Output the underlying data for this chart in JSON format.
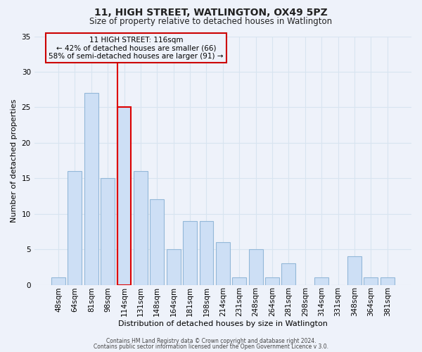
{
  "title": "11, HIGH STREET, WATLINGTON, OX49 5PZ",
  "subtitle": "Size of property relative to detached houses in Watlington",
  "xlabel": "Distribution of detached houses by size in Watlington",
  "ylabel": "Number of detached properties",
  "footer_line1": "Contains HM Land Registry data © Crown copyright and database right 2024.",
  "footer_line2": "Contains public sector information licensed under the Open Government Licence v 3.0.",
  "bar_labels": [
    "48sqm",
    "64sqm",
    "81sqm",
    "98sqm",
    "114sqm",
    "131sqm",
    "148sqm",
    "164sqm",
    "181sqm",
    "198sqm",
    "214sqm",
    "231sqm",
    "248sqm",
    "264sqm",
    "281sqm",
    "298sqm",
    "314sqm",
    "331sqm",
    "348sqm",
    "364sqm",
    "381sqm"
  ],
  "bar_values": [
    1,
    16,
    27,
    15,
    25,
    16,
    12,
    5,
    9,
    9,
    6,
    1,
    5,
    1,
    3,
    0,
    1,
    0,
    4,
    1,
    1
  ],
  "bar_color": "#cddff5",
  "bar_edge_color": "#93b8d8",
  "highlight_bar_edge_color": "#dd0000",
  "vline_color": "#dd0000",
  "annotation_text": "11 HIGH STREET: 116sqm\n← 42% of detached houses are smaller (66)\n58% of semi-detached houses are larger (91) →",
  "annotation_box_edge_color": "#cc0000",
  "ylim": [
    0,
    35
  ],
  "yticks": [
    0,
    5,
    10,
    15,
    20,
    25,
    30,
    35
  ],
  "bg_color": "#eef2fa",
  "grid_color": "#d8e4f0",
  "title_fontsize": 10,
  "subtitle_fontsize": 8.5,
  "axis_label_fontsize": 8,
  "tick_fontsize": 7.5,
  "footer_fontsize": 5.5
}
